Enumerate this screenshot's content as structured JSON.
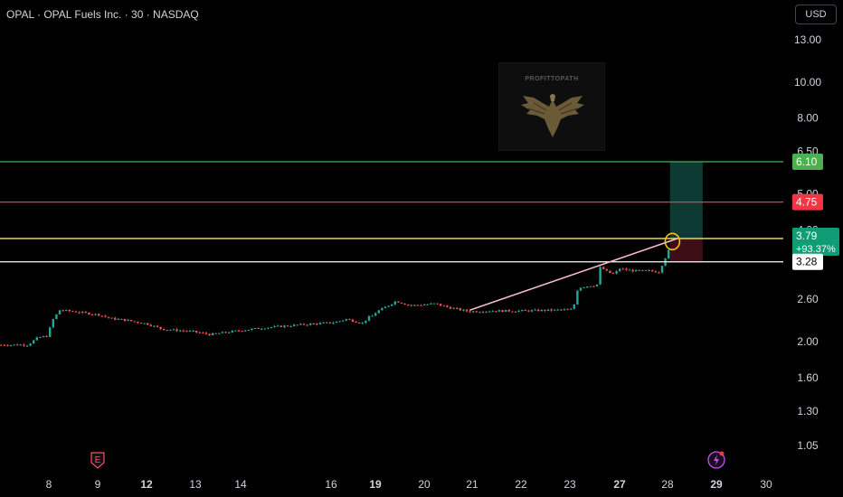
{
  "header": {
    "title": "OPAL · OPAL Fuels Inc. · 30 · NASDAQ"
  },
  "currency_button": "USD",
  "watermark": {
    "text": "PROFITTOPATH"
  },
  "colors": {
    "up": "#26a69a",
    "down": "#ef5350",
    "green_line": "#4caf50",
    "red_line": "#f23645",
    "yellow_line": "#ffeb3b",
    "white_line": "#ffffff",
    "trend_line": "#f8bbd0",
    "profit_zone": "#0d3a33",
    "loss_zone": "#3d0f14"
  },
  "chart_data": {
    "type": "candlestick",
    "y_scale": "log",
    "ylim": [
      0.98,
      14.2
    ],
    "y_ticks": [
      "13.00",
      "10.00",
      "8.00",
      "6.50",
      "5.00",
      "4.00",
      "2.60",
      "2.00",
      "1.60",
      "1.30",
      "1.05"
    ],
    "x_ticks": [
      "8",
      "9",
      "12",
      "13",
      "14",
      "16",
      "19",
      "20",
      "21",
      "22",
      "23",
      "27",
      "28",
      "29",
      "30"
    ],
    "x_ticks_bold": [
      "12",
      "19",
      "27",
      "29"
    ],
    "event_markers": [
      {
        "label": "E",
        "at": "9"
      },
      {
        "icon": "lightning-icon",
        "at": "29"
      }
    ],
    "price_path": [
      [
        7.55,
        1.96
      ],
      [
        7.75,
        2.05
      ],
      [
        7.95,
        2.07
      ],
      [
        8.05,
        2.28
      ],
      [
        8.2,
        2.43
      ],
      [
        8.5,
        2.41
      ],
      [
        8.9,
        2.37
      ],
      [
        9.3,
        2.34
      ],
      [
        9.7,
        2.31
      ],
      [
        10.5,
        2.29
      ],
      [
        12.0,
        2.23
      ],
      [
        12.3,
        2.16
      ],
      [
        12.9,
        2.13
      ],
      [
        13.3,
        2.09
      ],
      [
        13.8,
        2.13
      ],
      [
        14.5,
        2.18
      ],
      [
        15.5,
        2.23
      ],
      [
        16.3,
        2.26
      ],
      [
        17.0,
        2.3
      ],
      [
        17.5,
        2.27
      ],
      [
        18.1,
        2.24
      ],
      [
        18.4,
        2.32
      ],
      [
        18.8,
        2.35
      ],
      [
        19.1,
        2.44
      ],
      [
        19.4,
        2.57
      ],
      [
        19.7,
        2.5
      ],
      [
        20.2,
        2.53
      ],
      [
        20.5,
        2.47
      ],
      [
        20.9,
        2.41
      ],
      [
        21.4,
        2.42
      ],
      [
        22.0,
        2.42
      ],
      [
        22.6,
        2.43
      ],
      [
        23.0,
        2.44
      ],
      [
        23.3,
        2.53
      ],
      [
        23.45,
        2.74
      ],
      [
        23.75,
        2.8
      ],
      [
        24.3,
        2.82
      ],
      [
        24.8,
        2.84
      ],
      [
        25.05,
        2.78
      ],
      [
        25.3,
        3.17
      ],
      [
        25.65,
        3.13
      ],
      [
        26.0,
        3.07
      ],
      [
        26.5,
        3.04
      ],
      [
        26.9,
        3.15
      ],
      [
        27.3,
        3.1
      ],
      [
        27.6,
        3.1
      ],
      [
        27.8,
        3.08
      ],
      [
        28.05,
        3.62
      ]
    ],
    "horizontal_levels": [
      {
        "name": "target",
        "price": 6.1,
        "label": "6.10",
        "color": "#4caf50"
      },
      {
        "name": "stop",
        "price": 4.75,
        "label": "4.75",
        "color": "#f23645"
      },
      {
        "name": "current",
        "price": 3.79,
        "label": "3.79",
        "sublabel": "+93.37%",
        "color": "#ffeb3b"
      },
      {
        "name": "entry",
        "price": 3.28,
        "label": "3.28",
        "color": "#ffffff"
      }
    ],
    "trend_line": {
      "from": [
        20.95,
        2.43
      ],
      "to": [
        28.2,
        3.79
      ]
    },
    "position_zone": {
      "x_from": 28.05,
      "x_to": 28.72,
      "entry": 3.28,
      "target": 6.1,
      "stop": 3.28,
      "loss_to": 3.79
    },
    "highlight_circle": {
      "x": 28.1,
      "price": 3.72
    }
  }
}
